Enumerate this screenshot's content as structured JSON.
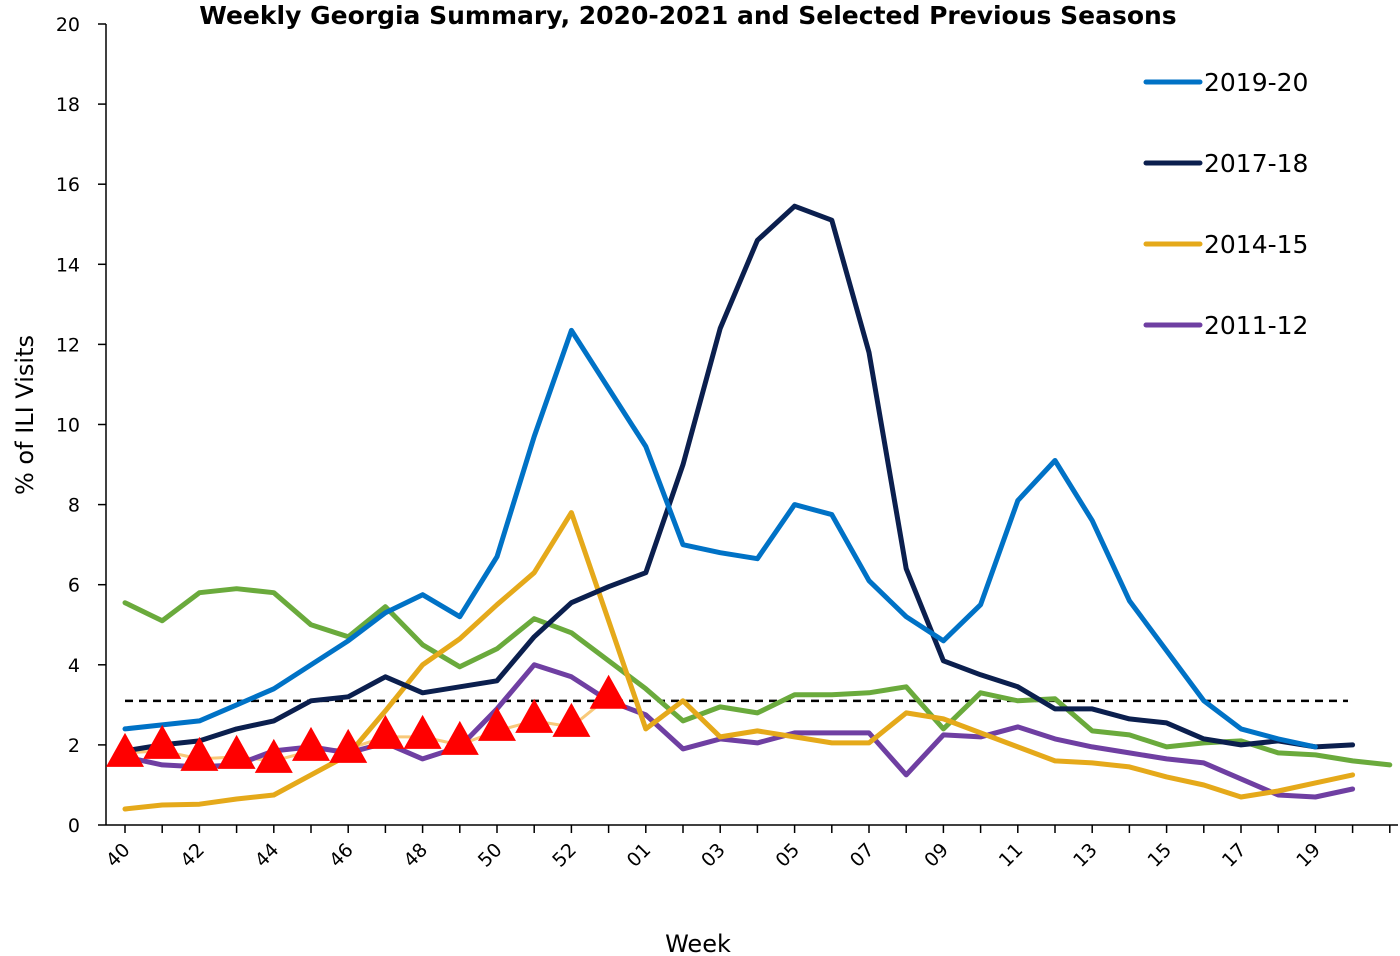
{
  "chart_data": {
    "type": "line",
    "title": "Weekly Georgia Summary, 2020-2021 and Selected Previous Seasons",
    "xlabel": "Week",
    "ylabel": "% of ILI Visits",
    "ylim": [
      0,
      20
    ],
    "yticks": [
      0,
      2,
      4,
      6,
      8,
      10,
      12,
      14,
      16,
      18,
      20
    ],
    "categories": [
      "40",
      "41",
      "42",
      "43",
      "44",
      "45",
      "46",
      "47",
      "48",
      "49",
      "50",
      "51",
      "52",
      "53",
      "01",
      "02",
      "03",
      "04",
      "05",
      "06",
      "07",
      "08",
      "09",
      "10",
      "11",
      "12",
      "13",
      "14",
      "15",
      "16",
      "17",
      "18",
      "19",
      "20",
      "21",
      "22",
      "23"
    ],
    "tick_labels": [
      "40",
      "42",
      "44",
      "46",
      "48",
      "50",
      "52",
      "01",
      "03",
      "05",
      "07",
      "09",
      "11",
      "13",
      "15",
      "17",
      "19"
    ],
    "legend_position": "top-right",
    "grid": false,
    "baseline": {
      "value": 3.1,
      "style": "dashed",
      "color": "#000000"
    },
    "series": [
      {
        "name": "2019-20",
        "color": "#0072C6",
        "legend": true,
        "values": [
          2.4,
          2.5,
          2.6,
          3.0,
          3.4,
          4.0,
          4.6,
          5.3,
          5.75,
          5.2,
          6.7,
          9.7,
          12.35,
          10.9,
          9.45,
          7.0,
          6.8,
          6.65,
          8.0,
          7.75,
          6.1,
          5.2,
          4.6,
          5.5,
          8.1,
          9.1,
          7.6,
          5.6,
          4.35,
          3.1,
          2.4,
          2.15,
          1.95,
          null,
          null,
          null,
          null
        ]
      },
      {
        "name": "2017-18",
        "color": "#0B1F4E",
        "legend": true,
        "values": [
          1.85,
          2.0,
          2.1,
          2.4,
          2.6,
          3.1,
          3.2,
          3.7,
          3.3,
          3.45,
          3.6,
          4.7,
          5.55,
          5.95,
          6.3,
          9.0,
          12.4,
          14.6,
          15.45,
          15.1,
          11.8,
          6.4,
          4.1,
          3.75,
          3.45,
          2.9,
          2.9,
          2.65,
          2.55,
          2.15,
          2.0,
          2.1,
          1.95,
          2.0,
          null,
          null,
          null
        ]
      },
      {
        "name": "2014-15",
        "color": "#E5A91A",
        "legend": true,
        "values": [
          0.4,
          0.5,
          0.52,
          0.65,
          0.75,
          1.25,
          1.75,
          2.85,
          4.0,
          4.65,
          5.5,
          6.3,
          7.8,
          5.1,
          2.4,
          3.1,
          2.2,
          2.35,
          2.2,
          2.05,
          2.05,
          2.8,
          2.65,
          2.3,
          1.95,
          1.6,
          1.55,
          1.45,
          1.2,
          1.0,
          0.7,
          0.85,
          1.05,
          1.25,
          null,
          null,
          null
        ]
      },
      {
        "name": "2011-12",
        "color": "#6F3FA2",
        "legend": true,
        "values": [
          1.7,
          1.5,
          1.45,
          1.5,
          1.85,
          1.95,
          1.8,
          2.05,
          1.65,
          1.95,
          2.9,
          4.0,
          3.7,
          3.1,
          2.75,
          1.9,
          2.15,
          2.05,
          2.3,
          2.3,
          2.3,
          1.25,
          2.25,
          2.2,
          2.45,
          2.15,
          1.95,
          1.8,
          1.65,
          1.55,
          1.15,
          0.75,
          0.7,
          0.9,
          null,
          null,
          null
        ]
      },
      {
        "name": "",
        "color": "#F8C97A",
        "legend": false,
        "values": [
          1.8,
          1.85,
          1.65,
          1.7,
          1.6,
          1.85,
          1.9,
          2.2,
          2.2,
          2.0,
          2.35,
          2.6,
          2.45,
          3.2,
          null,
          null,
          null,
          null,
          null,
          null,
          null,
          null,
          null,
          null,
          null,
          null,
          null,
          null,
          null,
          null,
          null,
          null,
          null,
          null,
          null,
          null,
          null
        ]
      },
      {
        "name": "",
        "color": "#6AAA3C",
        "legend": false,
        "values": [
          5.55,
          5.1,
          5.8,
          5.9,
          5.8,
          5.0,
          4.7,
          5.45,
          4.5,
          3.95,
          4.4,
          5.15,
          4.8,
          4.1,
          3.4,
          2.6,
          2.95,
          2.8,
          3.25,
          3.25,
          3.3,
          3.45,
          2.4,
          3.3,
          3.1,
          3.15,
          2.35,
          2.25,
          1.95,
          2.05,
          2.1,
          1.8,
          1.75,
          1.6,
          1.5,
          null,
          null
        ]
      }
    ],
    "markers": {
      "shape": "triangle",
      "color": "#FF0000",
      "values": [
        1.75,
        1.95,
        1.65,
        1.7,
        1.6,
        1.9,
        1.85,
        2.2,
        2.2,
        2.05,
        2.4,
        2.6,
        2.5,
        3.2
      ]
    }
  }
}
